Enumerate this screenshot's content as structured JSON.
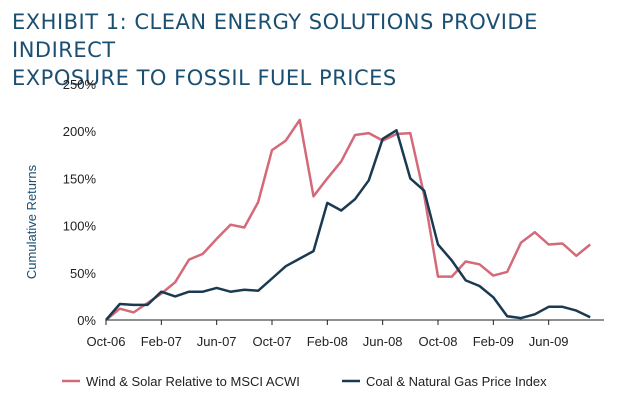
{
  "title_lines": [
    "EXHIBIT 1: CLEAN ENERGY SOLUTIONS PROVIDE INDIRECT",
    "EXPOSURE TO FOSSIL FUEL PRICES"
  ],
  "colors": {
    "title": "#1b4f72",
    "wind_solar": "#d46a78",
    "coal_gas": "#1a3a52",
    "axis": "#222222"
  },
  "chart_data": {
    "type": "line",
    "title": "EXHIBIT 1: CLEAN ENERGY SOLUTIONS PROVIDE INDIRECT EXPOSURE TO FOSSIL FUEL PRICES",
    "xlabel": "",
    "ylabel": "Cumulative Returns",
    "ylim": [
      0,
      250
    ],
    "yticks": [
      0,
      50,
      100,
      150,
      200,
      250
    ],
    "ytick_labels": [
      "0%",
      "50%",
      "100%",
      "150%",
      "200%",
      "250%"
    ],
    "x": [
      "2006-10",
      "2006-11",
      "2006-12",
      "2007-01",
      "2007-02",
      "2007-03",
      "2007-04",
      "2007-05",
      "2007-06",
      "2007-07",
      "2007-08",
      "2007-09",
      "2007-10",
      "2007-11",
      "2007-12",
      "2008-01",
      "2008-02",
      "2008-03",
      "2008-04",
      "2008-05",
      "2008-06",
      "2008-07",
      "2008-08",
      "2008-09",
      "2008-10",
      "2008-11",
      "2008-12",
      "2009-01",
      "2009-02",
      "2009-03",
      "2009-04",
      "2009-05",
      "2009-06",
      "2009-07",
      "2009-08",
      "2009-09",
      "2009-10"
    ],
    "xticks": [
      "2006-10",
      "2007-02",
      "2007-06",
      "2007-10",
      "2008-02",
      "2008-06",
      "2008-10",
      "2009-02",
      "2009-06"
    ],
    "xtick_labels": [
      "Oct-06",
      "Feb-07",
      "Jun-07",
      "Oct-07",
      "Feb-08",
      "Jun-08",
      "Oct-08",
      "Feb-09",
      "Jun-09"
    ],
    "series": [
      {
        "name": "Wind & Solar Relative to MSCI ACWI",
        "color": "#d46a78",
        "values": [
          0,
          12,
          8,
          18,
          28,
          40,
          64,
          70,
          86,
          101,
          98,
          125,
          180,
          190,
          212,
          131,
          150,
          168,
          196,
          198,
          190,
          197,
          198,
          132,
          46,
          46,
          62,
          59,
          47,
          51,
          82,
          93,
          80,
          81,
          68,
          80,
          null
        ]
      },
      {
        "name": "Coal & Natural Gas Price Index",
        "color": "#1a3a52",
        "values": [
          0,
          17,
          16,
          16,
          30,
          25,
          30,
          30,
          34,
          30,
          32,
          31,
          44,
          57,
          65,
          73,
          124,
          116,
          128,
          148,
          192,
          201,
          150,
          137,
          80,
          63,
          42,
          36,
          24,
          4,
          2,
          6,
          14,
          14,
          10,
          3,
          null
        ]
      }
    ],
    "grid": false,
    "legend_position": "bottom"
  }
}
